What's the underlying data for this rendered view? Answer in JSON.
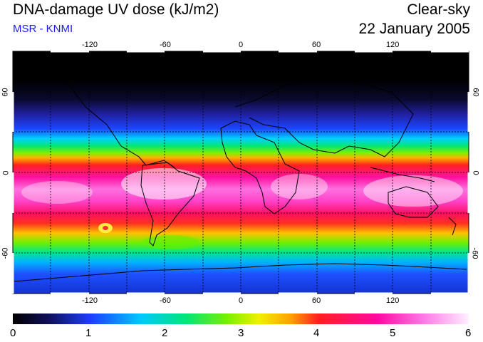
{
  "header": {
    "title": "DNA-damage UV dose (kJ/m2)",
    "subtitle": "MSR - KNMI",
    "mode": "Clear-sky",
    "date": "22 January 2005"
  },
  "axes": {
    "lon_ticks": [
      "-120",
      "-60",
      "0",
      "60",
      "120"
    ],
    "lat_ticks": [
      "60",
      "0",
      "-60"
    ]
  },
  "colorbar": {
    "ticks": [
      "0",
      "1",
      "2",
      "3",
      "4",
      "5",
      "6"
    ]
  },
  "colors": {
    "subtitle": "#1a1aff",
    "scale": [
      "#000000",
      "#14146e",
      "#1e3cff",
      "#00c8ff",
      "#00e678",
      "#78f000",
      "#f0f000",
      "#ffa000",
      "#ff1e1e",
      "#ff0aa0",
      "#ff78e6",
      "#fff0ff"
    ]
  }
}
